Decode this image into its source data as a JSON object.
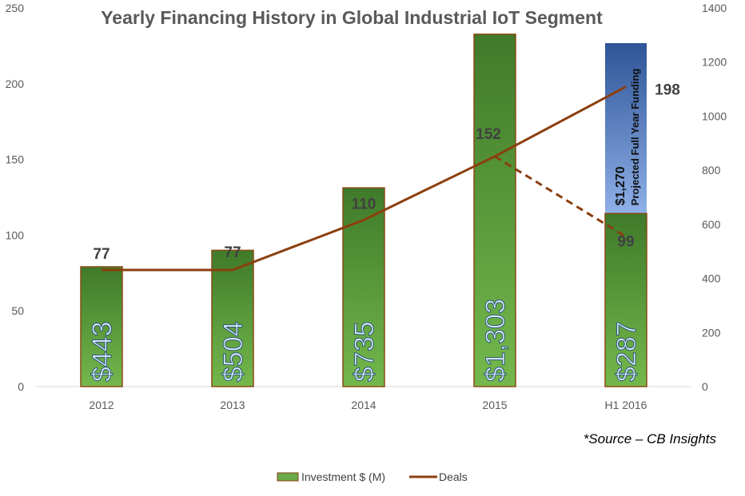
{
  "chart_data": {
    "type": "bar+line",
    "title": "Yearly Financing History in Global Industrial IoT Segment",
    "categories": [
      "2012",
      "2013",
      "2014",
      "2015",
      "H1 2016"
    ],
    "series": [
      {
        "name": "Investment $ (M)",
        "type": "bar",
        "axis": "right",
        "values": [
          443,
          504,
          735,
          1303,
          287
        ],
        "labels": [
          "$443",
          "$504",
          "$735",
          "$1,303",
          "$287"
        ],
        "color": "#5a9a3a"
      },
      {
        "name": "Deals",
        "type": "line",
        "axis": "left",
        "values": [
          77,
          77,
          110,
          152,
          198
        ],
        "labels": [
          "77",
          "77",
          "110",
          "152",
          "198"
        ],
        "color": "#8b3f0e"
      }
    ],
    "projection": {
      "investment_value": 1270,
      "investment_label": "$1,270",
      "investment_caption": "Projected Full Year Funding",
      "color": "#4a78c8",
      "deals_from": 152,
      "deals_to": 99,
      "deals_to_label": "99"
    },
    "left_axis": {
      "ylim": [
        0,
        250
      ],
      "ticks": [
        0,
        50,
        100,
        150,
        200,
        250
      ]
    },
    "right_axis": {
      "ylim": [
        0,
        1400
      ],
      "ticks": [
        0,
        200,
        400,
        600,
        800,
        1000,
        1200,
        1400
      ]
    },
    "grid": false,
    "legend": "bottom",
    "source_note": "*Source – CB Insights"
  }
}
